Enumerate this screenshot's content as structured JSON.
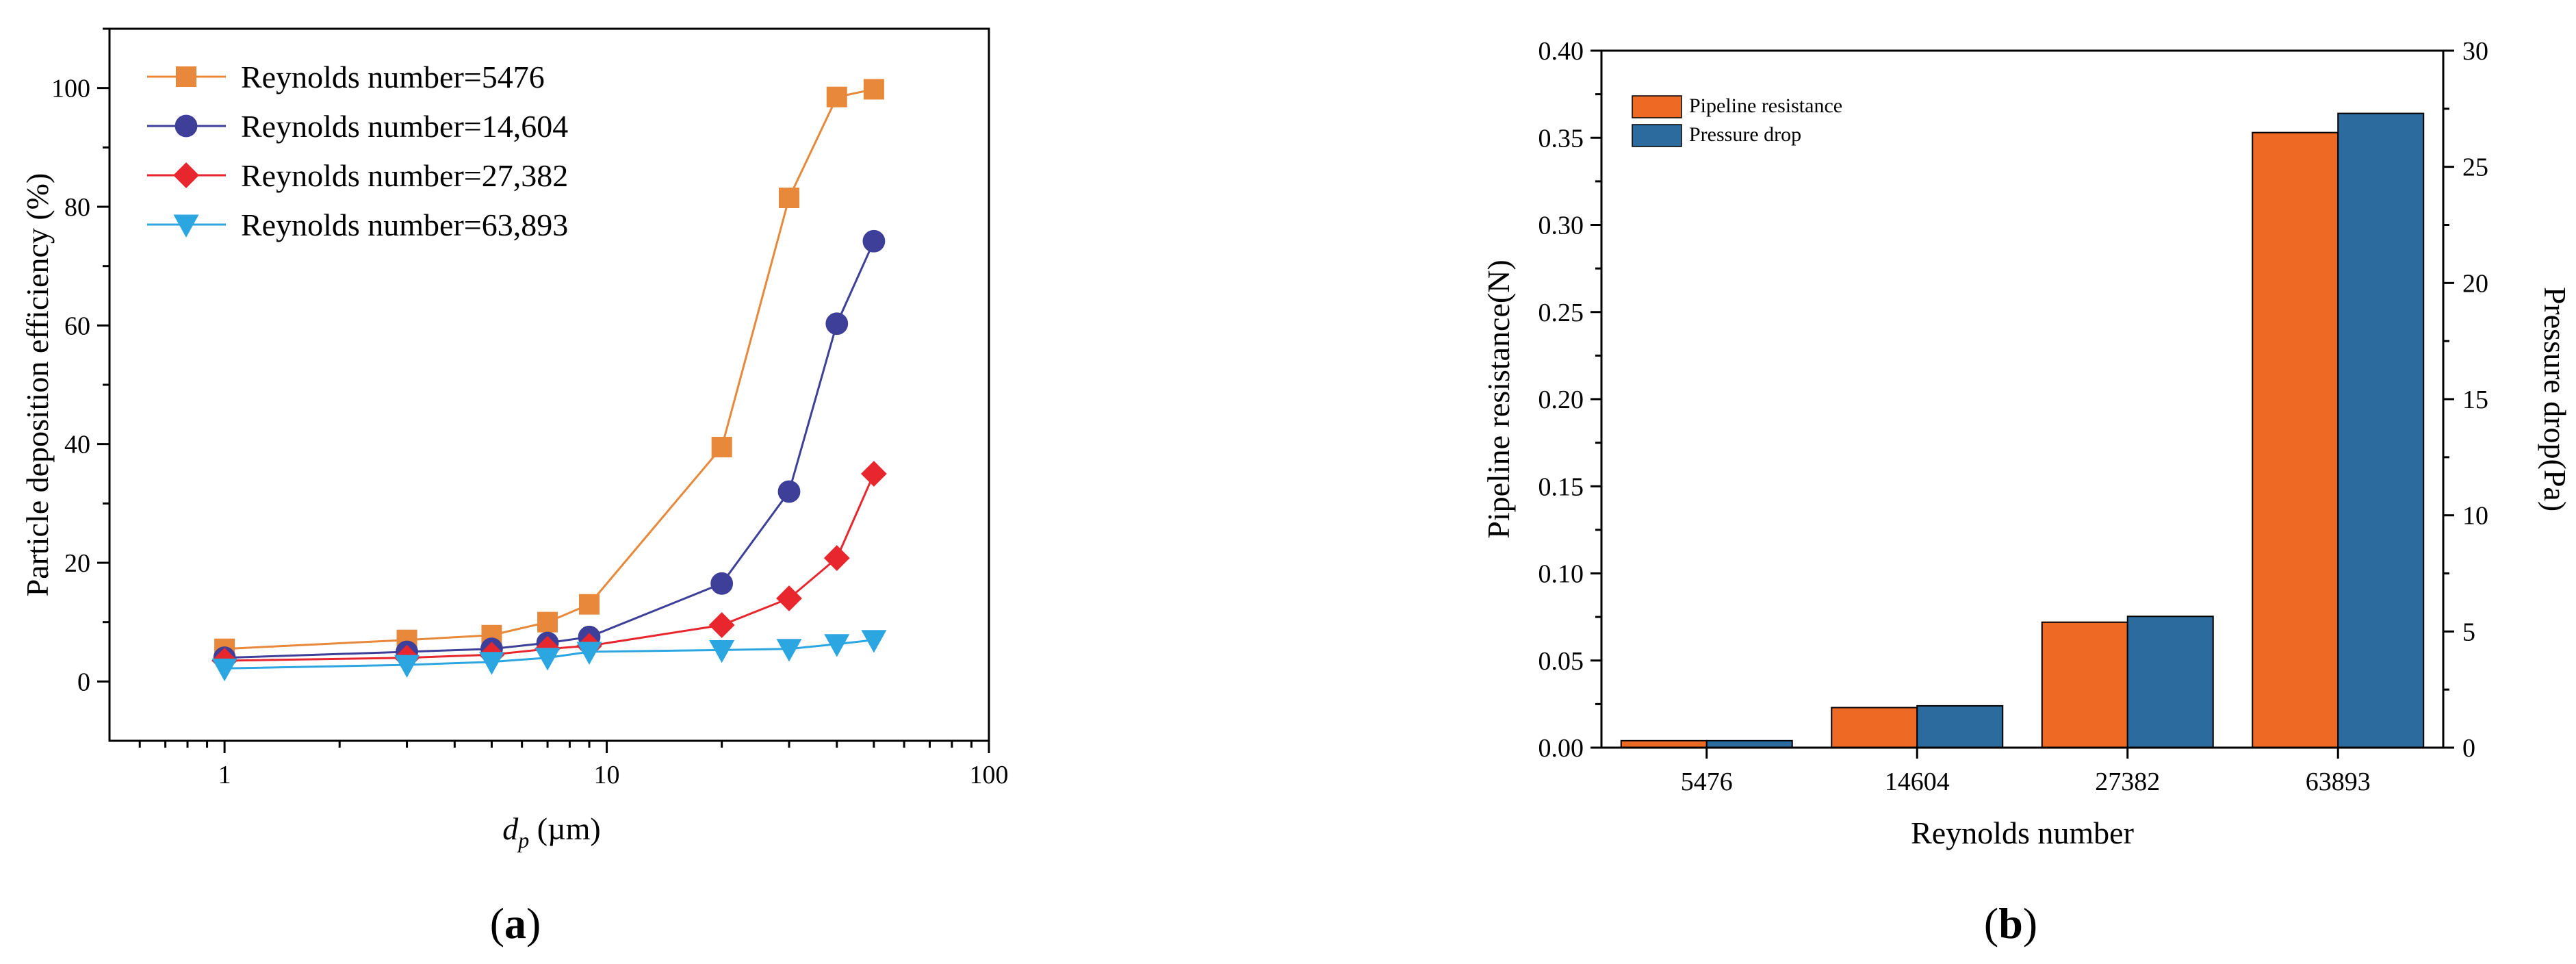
{
  "chart_data": [
    {
      "type": "line",
      "panel_label": {
        "open": "(",
        "letter": "a",
        "close": ")"
      },
      "title": "",
      "xlabel": {
        "symbol": "d",
        "subscript": "p",
        "unit": " (µm)"
      },
      "ylabel": "Particle deposition efficiency (%)",
      "xscale": "log",
      "xlim": [
        0.5,
        100
      ],
      "ylim": [
        -10,
        110
      ],
      "x_ticks": [
        1,
        10,
        100
      ],
      "x_tick_labels": [
        "1",
        "10",
        "100"
      ],
      "y_ticks": [
        0,
        20,
        40,
        60,
        80,
        100
      ],
      "y_tick_labels": [
        "0",
        "20",
        "40",
        "60",
        "80",
        "100"
      ],
      "legend_position": "top-left",
      "x": [
        1,
        3,
        5,
        7,
        9,
        20,
        30,
        40,
        50
      ],
      "series": [
        {
          "name": "Reynolds number=5476",
          "color": "#E8883A",
          "marker": "square",
          "values": [
            5.5,
            7,
            7.8,
            10,
            13,
            39.5,
            81.5,
            98.5,
            99.8
          ]
        },
        {
          "name": "Reynolds number=14,604",
          "color": "#3D3F98",
          "marker": "circle",
          "values": [
            4,
            5,
            5.5,
            6.5,
            7.5,
            16.5,
            32,
            60.3,
            74.2
          ]
        },
        {
          "name": "Reynolds number=27,382",
          "color": "#E8262E",
          "marker": "diamond",
          "values": [
            3.5,
            4,
            4.5,
            5.5,
            6,
            9.5,
            14,
            20.8,
            35
          ]
        },
        {
          "name": "Reynolds number=63,893",
          "color": "#2BA6E1",
          "marker": "triangle-down",
          "values": [
            2.2,
            2.8,
            3.3,
            4,
            5,
            5.3,
            5.5,
            6.3,
            7
          ]
        }
      ]
    },
    {
      "type": "bar",
      "panel_label": {
        "open": "(",
        "letter": "b",
        "close": ")"
      },
      "title": "",
      "xlabel": "Reynolds number",
      "ylabel": "Pipeline resistance(N)",
      "y2label": "Pressure drop(Pa)",
      "categories": [
        "5476",
        "14604",
        "27382",
        "63893"
      ],
      "ylim": [
        0,
        0.4
      ],
      "y2lim": [
        0,
        30
      ],
      "y_ticks": [
        0,
        0.05,
        0.1,
        0.15,
        0.2,
        0.25,
        0.3,
        0.35,
        0.4
      ],
      "y_tick_labels": [
        "0.00",
        "0.05",
        "0.10",
        "0.15",
        "0.20",
        "0.25",
        "0.30",
        "0.35",
        "0.40"
      ],
      "y2_ticks": [
        0,
        5,
        10,
        15,
        20,
        25,
        30
      ],
      "y2_tick_labels": [
        "0",
        "5",
        "10",
        "15",
        "20",
        "25",
        "30"
      ],
      "legend_position": "top-left",
      "series": [
        {
          "name": "Pipeline resistance",
          "axis": "left",
          "color": "#EE6A24",
          "values": [
            0.004,
            0.023,
            0.072,
            0.353
          ]
        },
        {
          "name": "Pressure drop",
          "axis": "right",
          "color": "#2B6B9E",
          "values": [
            0.3,
            1.8,
            5.65,
            27.3
          ]
        }
      ]
    }
  ]
}
